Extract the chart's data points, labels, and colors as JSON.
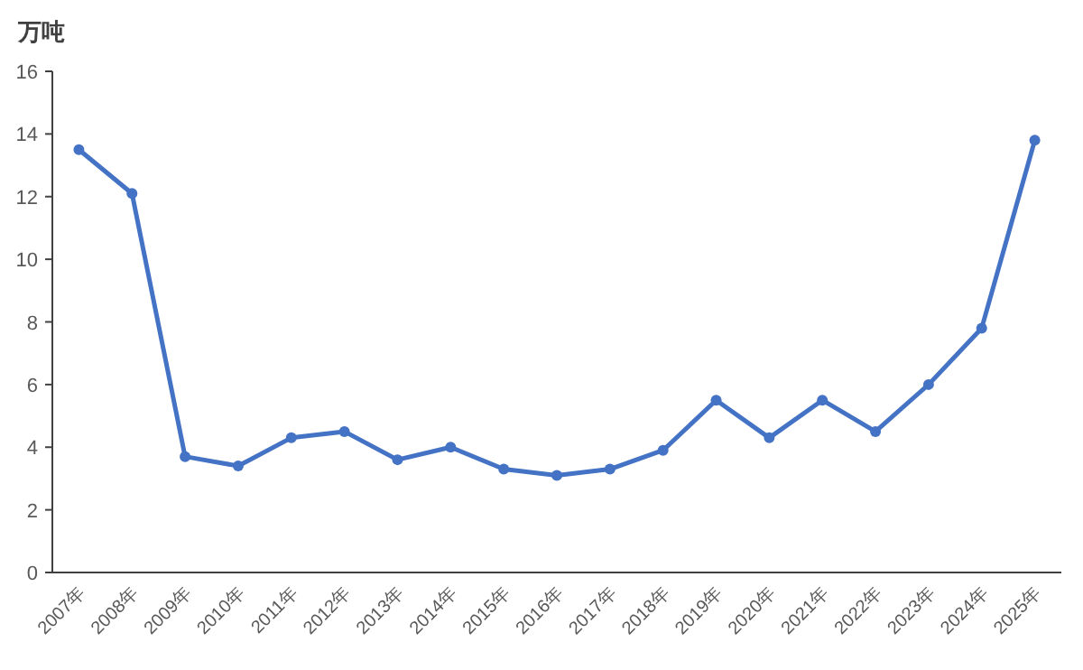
{
  "chart_data": {
    "type": "line",
    "ylabel": "万吨",
    "categories": [
      "2007年",
      "2008年",
      "2009年",
      "2010年",
      "2011年",
      "2012年",
      "2013年",
      "2014年",
      "2015年",
      "2016年",
      "2017年",
      "2018年",
      "2019年",
      "2020年",
      "2021年",
      "2022年",
      "2023年",
      "2024年",
      "2025年"
    ],
    "series": [
      {
        "color": "#4472c4",
        "values": [
          13.5,
          12.1,
          3.7,
          3.4,
          4.3,
          4.5,
          3.6,
          4.0,
          3.3,
          3.1,
          3.3,
          3.9,
          5.5,
          4.3,
          5.5,
          4.5,
          6.0,
          7.8,
          13.8
        ]
      }
    ],
    "ylim": [
      0,
      16
    ],
    "yticks": [
      0,
      2,
      4,
      6,
      8,
      10,
      12,
      14,
      16
    ],
    "marker": "circle",
    "line_style": "solid"
  }
}
